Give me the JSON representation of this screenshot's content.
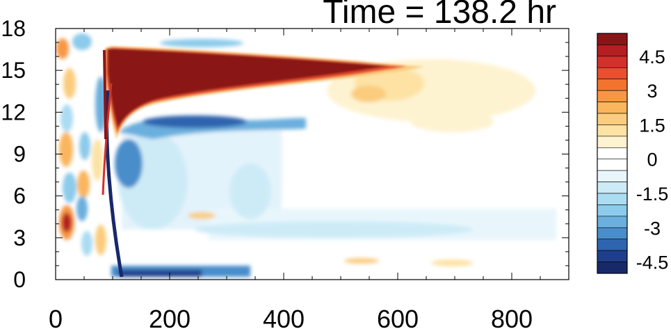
{
  "chart_data": {
    "type": "heatmap",
    "title": "Time = 138.2 hr",
    "xlabel": "",
    "ylabel": "",
    "xlim": [
      0,
      900
    ],
    "ylim": [
      0,
      18
    ],
    "x_ticks": [
      "0",
      "200",
      "400",
      "600",
      "800"
    ],
    "y_ticks": [
      "0",
      "3",
      "6",
      "9",
      "12",
      "15",
      "18"
    ],
    "colorbar": {
      "tick_labels": [
        "4.5",
        "3",
        "1.5",
        "0",
        "-1.5",
        "-3",
        "-4.5"
      ],
      "colors": [
        "#8a1517",
        "#b41d21",
        "#d4302b",
        "#e8502f",
        "#f2742f",
        "#f79745",
        "#fab55d",
        "#fbcc7e",
        "#fde2a4",
        "#fef3d0",
        "#ffffff",
        "#ffffff",
        "#e8f6fc",
        "#cdebf7",
        "#abdcf2",
        "#8ccbeb",
        "#6aafdd",
        "#4a8dcb",
        "#2f64ae",
        "#1f3f8a",
        "#18296a"
      ]
    },
    "features": [
      {
        "type": "max",
        "x_range": [
          90,
          560
        ],
        "y_range": [
          12,
          16.7
        ],
        "value": 5
      }
    ]
  }
}
